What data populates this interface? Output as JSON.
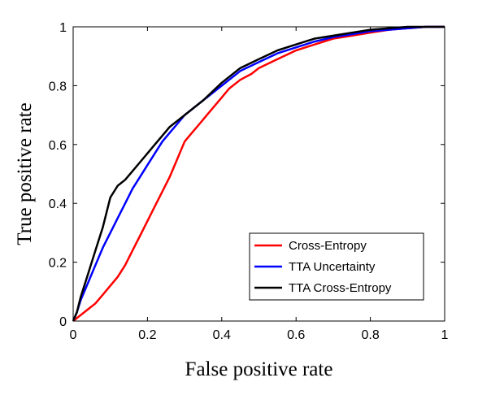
{
  "chart_data": {
    "type": "line",
    "title": "",
    "xlabel": "False positive rate",
    "ylabel": "True positive rate",
    "xlim": [
      0,
      1
    ],
    "ylim": [
      0,
      1
    ],
    "xticks": [
      0,
      0.2,
      0.4,
      0.6,
      0.8,
      1
    ],
    "yticks": [
      0,
      0.2,
      0.4,
      0.6,
      0.8,
      1
    ],
    "xtick_labels": [
      "0",
      "0.2",
      "0.4",
      "0.6",
      "0.8",
      "1"
    ],
    "ytick_labels": [
      "0",
      "0.2",
      "0.4",
      "0.6",
      "0.8",
      "1"
    ],
    "grid": false,
    "legend_position": "bottom-right",
    "series": [
      {
        "name": "Cross-Entropy",
        "color": "#ff0000",
        "x": [
          0,
          0.02,
          0.04,
          0.06,
          0.08,
          0.1,
          0.12,
          0.14,
          0.16,
          0.18,
          0.2,
          0.22,
          0.24,
          0.26,
          0.28,
          0.3,
          0.32,
          0.34,
          0.36,
          0.38,
          0.4,
          0.42,
          0.45,
          0.48,
          0.5,
          0.55,
          0.6,
          0.65,
          0.7,
          0.75,
          0.8,
          0.85,
          0.9,
          0.95,
          1.0
        ],
        "y": [
          0,
          0.02,
          0.04,
          0.06,
          0.09,
          0.12,
          0.15,
          0.19,
          0.24,
          0.29,
          0.34,
          0.39,
          0.44,
          0.49,
          0.55,
          0.61,
          0.64,
          0.67,
          0.7,
          0.73,
          0.76,
          0.79,
          0.82,
          0.84,
          0.86,
          0.89,
          0.92,
          0.94,
          0.96,
          0.97,
          0.98,
          0.99,
          0.995,
          1.0,
          1.0
        ]
      },
      {
        "name": "TTA Uncertainty",
        "color": "#0000ff",
        "x": [
          0,
          0.01,
          0.02,
          0.04,
          0.06,
          0.08,
          0.1,
          0.12,
          0.14,
          0.16,
          0.18,
          0.2,
          0.22,
          0.24,
          0.26,
          0.28,
          0.3,
          0.35,
          0.4,
          0.45,
          0.5,
          0.55,
          0.6,
          0.65,
          0.7,
          0.75,
          0.8,
          0.85,
          0.9,
          0.95,
          1.0
        ],
        "y": [
          0,
          0.03,
          0.07,
          0.13,
          0.19,
          0.25,
          0.3,
          0.35,
          0.4,
          0.45,
          0.49,
          0.53,
          0.57,
          0.61,
          0.64,
          0.67,
          0.7,
          0.75,
          0.8,
          0.85,
          0.88,
          0.91,
          0.93,
          0.95,
          0.965,
          0.975,
          0.985,
          0.99,
          0.995,
          1.0,
          1.0
        ]
      },
      {
        "name": "TTA Cross-Entropy",
        "color": "#000000",
        "x": [
          0,
          0.01,
          0.02,
          0.04,
          0.06,
          0.08,
          0.1,
          0.12,
          0.14,
          0.16,
          0.18,
          0.2,
          0.22,
          0.24,
          0.26,
          0.28,
          0.3,
          0.35,
          0.4,
          0.45,
          0.5,
          0.55,
          0.6,
          0.65,
          0.7,
          0.75,
          0.8,
          0.85,
          0.9,
          0.95,
          1.0
        ],
        "y": [
          0,
          0.03,
          0.08,
          0.16,
          0.24,
          0.32,
          0.42,
          0.46,
          0.48,
          0.51,
          0.54,
          0.57,
          0.6,
          0.63,
          0.66,
          0.68,
          0.7,
          0.75,
          0.81,
          0.86,
          0.89,
          0.92,
          0.94,
          0.96,
          0.97,
          0.98,
          0.99,
          0.995,
          1.0,
          1.0,
          1.0
        ]
      }
    ]
  }
}
